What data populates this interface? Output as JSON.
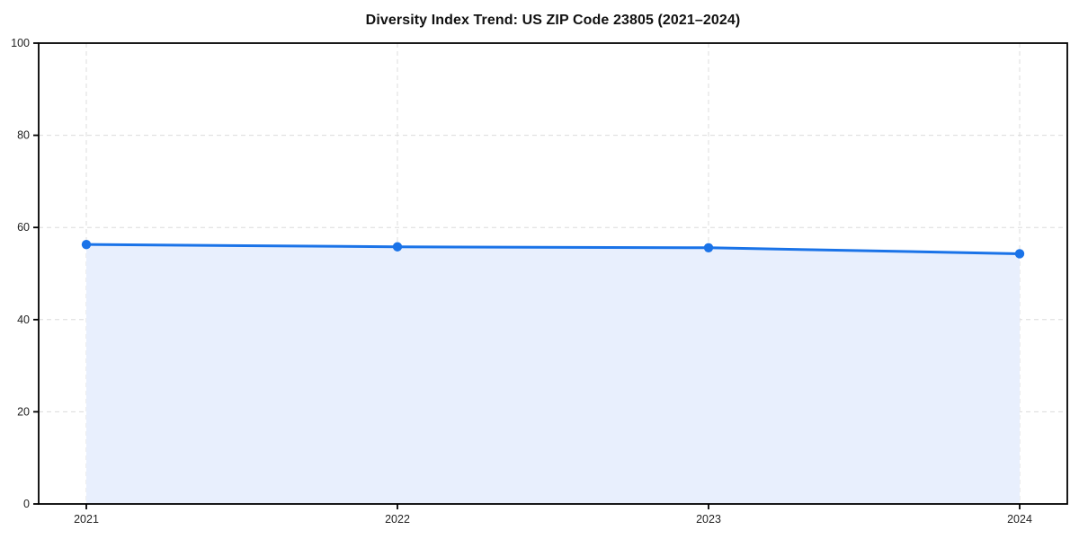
{
  "chart": {
    "title": "Diversity Index Trend: US ZIP Code 23805 (2021–2024)"
  },
  "chart_data": {
    "type": "area",
    "title": "Diversity Index Trend: US ZIP Code 23805 (2021–2024)",
    "categories": [
      "2021",
      "2022",
      "2023",
      "2024"
    ],
    "x": [
      2021,
      2022,
      2023,
      2024
    ],
    "series": [
      {
        "name": "Diversity Index",
        "values": [
          56.3,
          55.8,
          55.6,
          54.3
        ]
      }
    ],
    "xlabel": "",
    "ylabel": "",
    "ylim": [
      0,
      100
    ],
    "y_ticks": [
      0,
      20,
      40,
      60,
      80,
      100
    ],
    "grid": "dashed-both-axes",
    "legend_position": "none",
    "colors": {
      "line": "#1a73e8",
      "marker": "#1a73e8",
      "fill": "#e8effd",
      "grid": "#dcdcdc",
      "axis": "#000000",
      "tick_label": "#222222",
      "background": "#ffffff"
    }
  }
}
